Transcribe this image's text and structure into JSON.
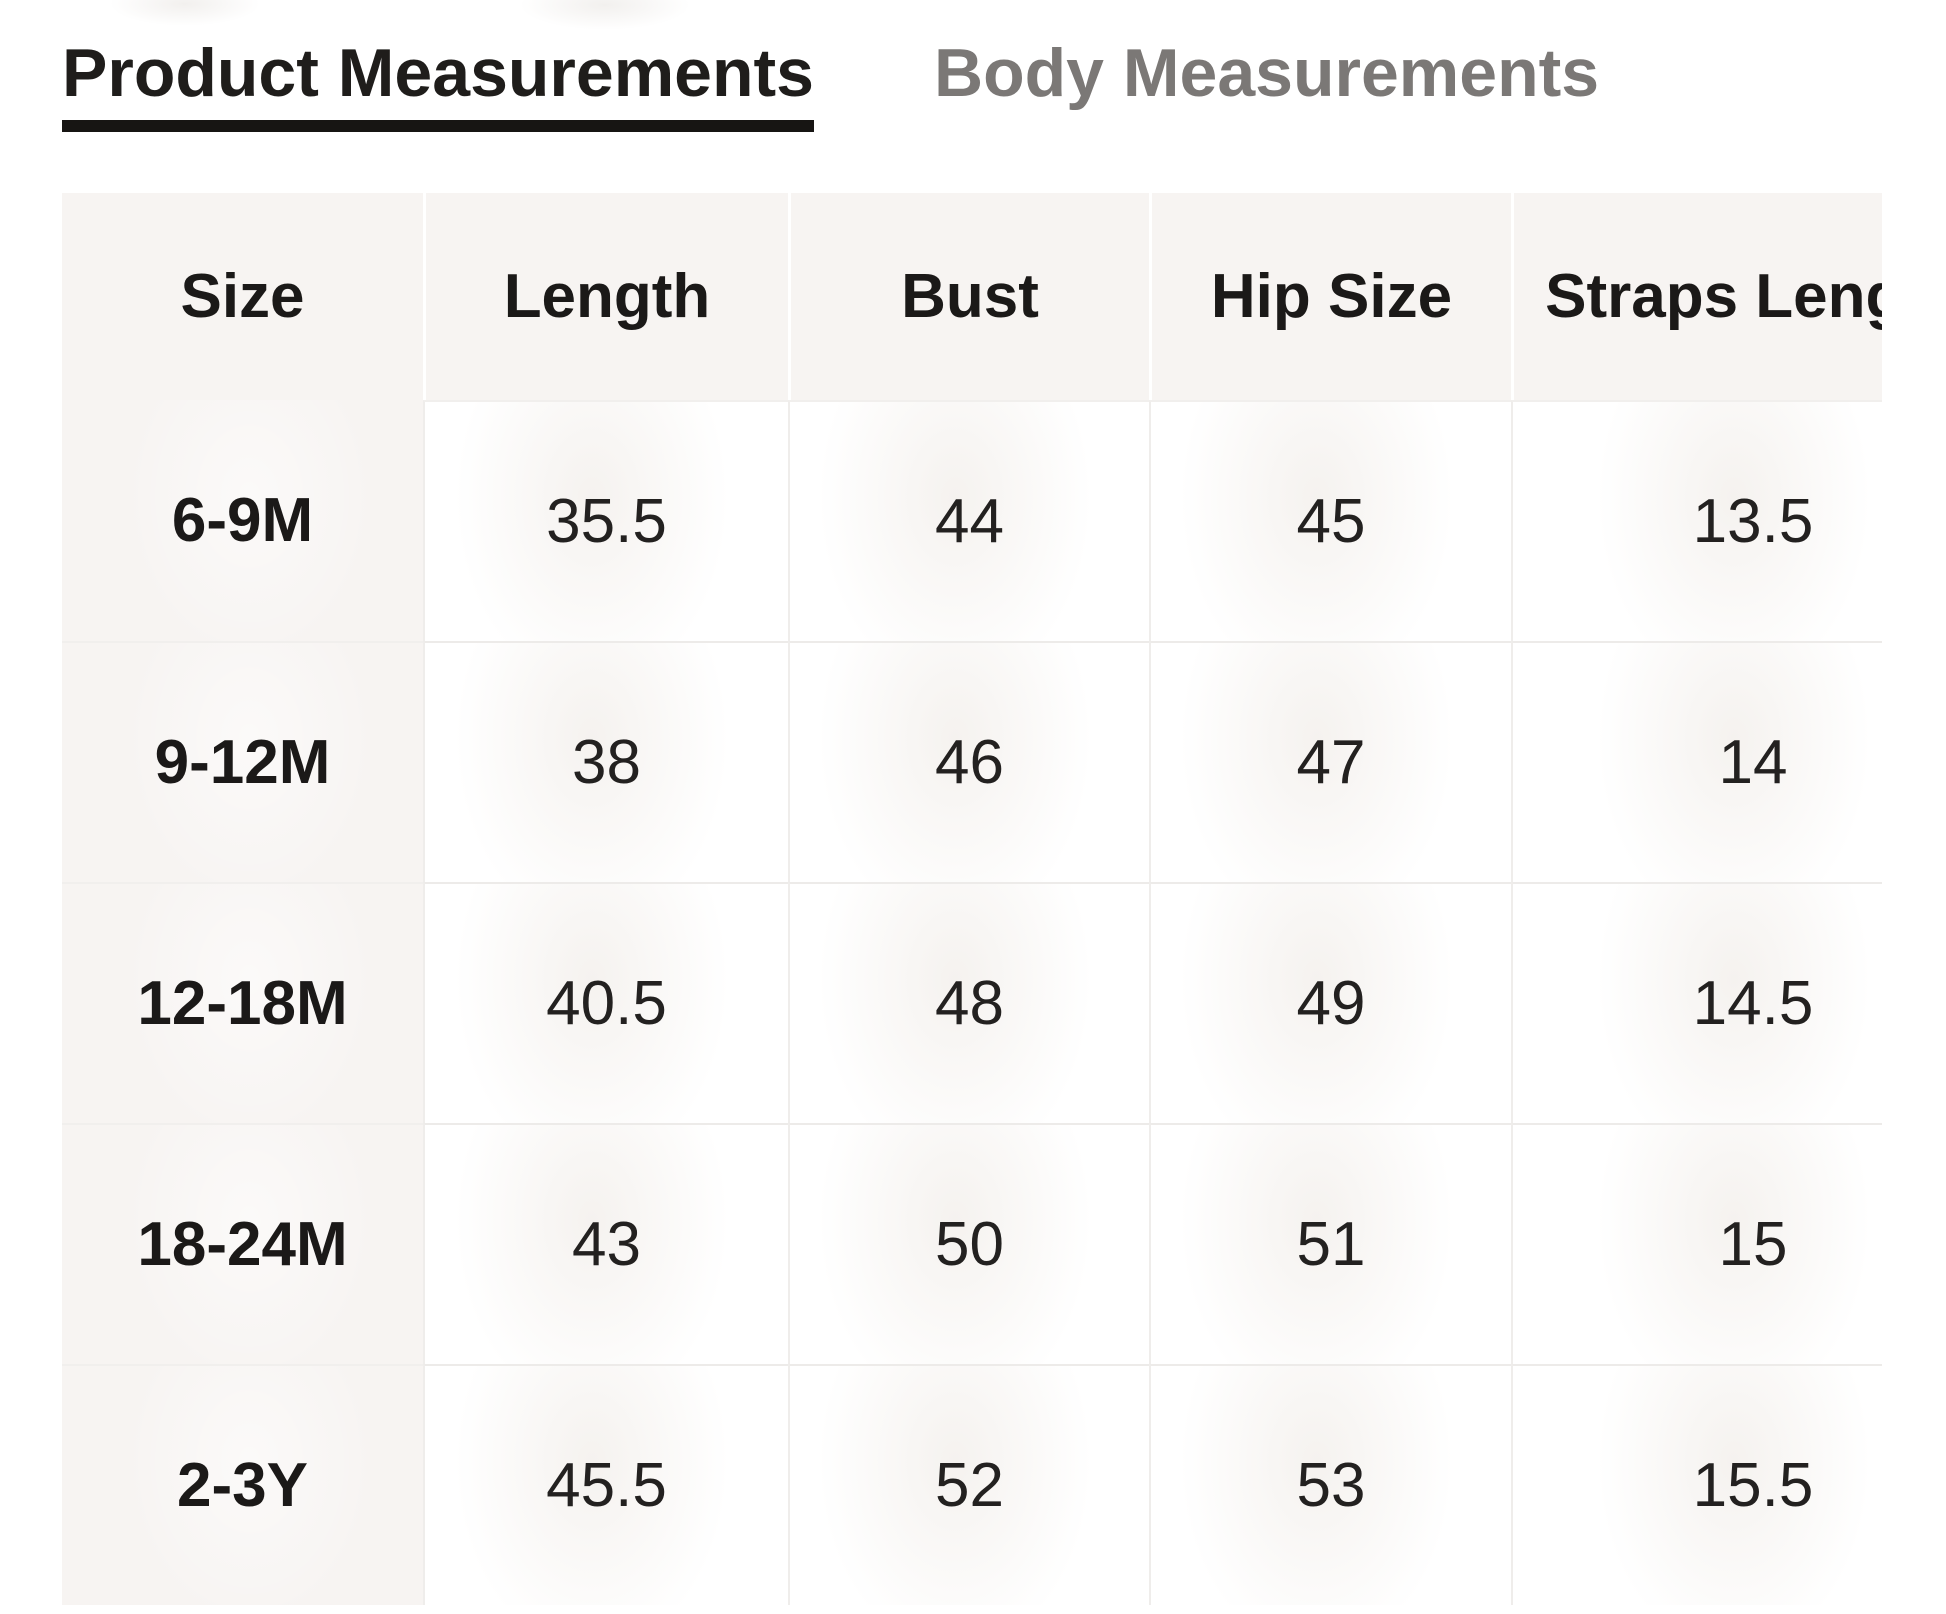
{
  "tabs": {
    "product": {
      "label": "Product Measurements",
      "active": true
    },
    "body": {
      "label": "Body Measurements",
      "active": false
    }
  },
  "size_chart": {
    "columns": [
      "Size",
      "Length",
      "Bust",
      "Hip Size",
      "Straps Length"
    ],
    "rows": [
      {
        "size": "6-9M",
        "values": [
          "35.5",
          "44",
          "45",
          "13.5"
        ]
      },
      {
        "size": "9-12M",
        "values": [
          "38",
          "46",
          "47",
          "14"
        ]
      },
      {
        "size": "12-18M",
        "values": [
          "40.5",
          "48",
          "49",
          "14.5"
        ]
      },
      {
        "size": "18-24M",
        "values": [
          "43",
          "50",
          "51",
          "15"
        ]
      },
      {
        "size": "2-3Y",
        "values": [
          "45.5",
          "52",
          "53",
          "15.5"
        ]
      }
    ],
    "note": "last column clipped by viewport edge"
  },
  "colors": {
    "active_tab_text": "#1f1d1b",
    "active_tab_underline": "#171513",
    "inactive_tab_text": "#7b7876",
    "header_cell_bg": "#f7f4f2",
    "size_column_bg": "#f7f4f2",
    "grid_line": "#edebe9",
    "cell_text": "#232120",
    "page_bg": "#ffffff"
  }
}
